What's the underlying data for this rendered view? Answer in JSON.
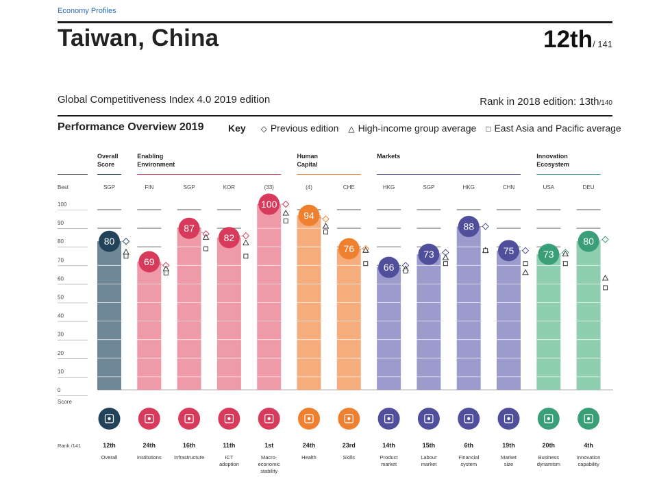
{
  "header": {
    "breadcrumb": "Economy Profiles",
    "country": "Taiwan, China",
    "rank": "12th",
    "rank_total": "/ 141",
    "index_title": "Global Competitiveness Index 4.0 2019 edition",
    "rank_2018_label": "Rank in 2018 edition: 13th",
    "rank_2018_total": "/140"
  },
  "overview": {
    "title": "Performance Overview 2019",
    "key_label": "Key",
    "key_items": [
      {
        "icon": "diamond-outline-icon",
        "label": "Previous edition"
      },
      {
        "icon": "triangle-outline-icon",
        "label": "High-income group average"
      },
      {
        "icon": "square-outline-icon",
        "label": "East Asia and Pacific average"
      }
    ],
    "best_label": "Best",
    "score_label": "Score",
    "rank_label": "Rank /141"
  },
  "groups": [
    {
      "label": [
        "Overall",
        "Score"
      ],
      "color": "#23435a",
      "from": 0,
      "to": 0
    },
    {
      "label": [
        "Enabling",
        "Environment"
      ],
      "color": "#d73a5a",
      "from": 1,
      "to": 4
    },
    {
      "label": [
        "Human",
        "Capital"
      ],
      "color": "#ef8030",
      "from": 5,
      "to": 6
    },
    {
      "label": [
        "Markets"
      ],
      "color": "#4f4f9c",
      "from": 7,
      "to": 10
    },
    {
      "label": [
        "Innovation",
        "Ecosystem"
      ],
      "color": "#3a9f77",
      "from": 11,
      "to": 12
    }
  ],
  "chart_data": {
    "type": "bar",
    "ylim": [
      0,
      100
    ],
    "yticks": [
      "0",
      "10",
      "20",
      "30",
      "40",
      "50",
      "60",
      "70",
      "80",
      "90",
      "100"
    ],
    "categories": [
      "Overall",
      "Institutions",
      "Infrastructure",
      "ICT adoption",
      "Macro-economic stability",
      "Health",
      "Skills",
      "Product market",
      "Labour market",
      "Financial system",
      "Market size",
      "Business dynamism",
      "Innovation capability"
    ],
    "series": [
      {
        "name": "Score",
        "values": [
          80,
          69,
          87,
          82,
          100,
          94,
          76,
          66,
          73,
          88,
          75,
          73,
          80
        ]
      },
      {
        "name": "Previous edition",
        "values": [
          80,
          67,
          84,
          83,
          100,
          92,
          76,
          67,
          74,
          88,
          75,
          74,
          81
        ]
      },
      {
        "name": "High-income group average",
        "values": [
          74,
          65,
          82,
          79,
          95,
          88,
          75,
          65,
          71,
          75,
          63,
          73,
          60
        ]
      },
      {
        "name": "East Asia and Pacific average",
        "values": [
          72,
          63,
          76,
          72,
          91,
          85,
          68,
          64,
          68,
          75,
          68,
          68,
          55
        ]
      }
    ],
    "best_performers": [
      "SGP",
      "FIN",
      "SGP",
      "KOR",
      "(33)",
      "(4)",
      "CHE",
      "HKG",
      "SGP",
      "HKG",
      "CHN",
      "USA",
      "DEU"
    ],
    "ranks": [
      "12th",
      "24th",
      "16th",
      "11th",
      "1st",
      "24th",
      "23rd",
      "14th",
      "15th",
      "6th",
      "19th",
      "20th",
      "4th"
    ],
    "pillar_labels": [
      [
        "Overall"
      ],
      [
        "Institutions"
      ],
      [
        "Infrastructure"
      ],
      [
        "ICT",
        "adoption"
      ],
      [
        "Macro-",
        "economic",
        "stability"
      ],
      [
        "Health"
      ],
      [
        "Skills"
      ],
      [
        "Product",
        "market"
      ],
      [
        "Labour",
        "market"
      ],
      [
        "Financial",
        "system"
      ],
      [
        "Market",
        "size"
      ],
      [
        "Business",
        "dynamism"
      ],
      [
        "Innovation",
        "capability"
      ]
    ],
    "pillar_icons": [
      "gear-icon",
      "institution-icon",
      "train-icon",
      "chip-icon",
      "growth-arrow-icon",
      "heartbeat-icon",
      "graduate-icon",
      "price-tag-icon",
      "people-network-icon",
      "credit-card-icon",
      "expand-icon",
      "business-plan-icon",
      "lightbulb-icon"
    ],
    "colors": {
      "overall_bar": "#6f8898",
      "overall_dot": "#23435a",
      "enabling_bar": "#ef9aa8",
      "enabling_dot": "#d73a5a",
      "human_bar": "#f6ad7d",
      "human_dot": "#ef8030",
      "markets_bar": "#9c9ccc",
      "markets_dot": "#4f4f9c",
      "innovation_bar": "#8fcfb0",
      "innovation_dot": "#3a9f77"
    }
  }
}
